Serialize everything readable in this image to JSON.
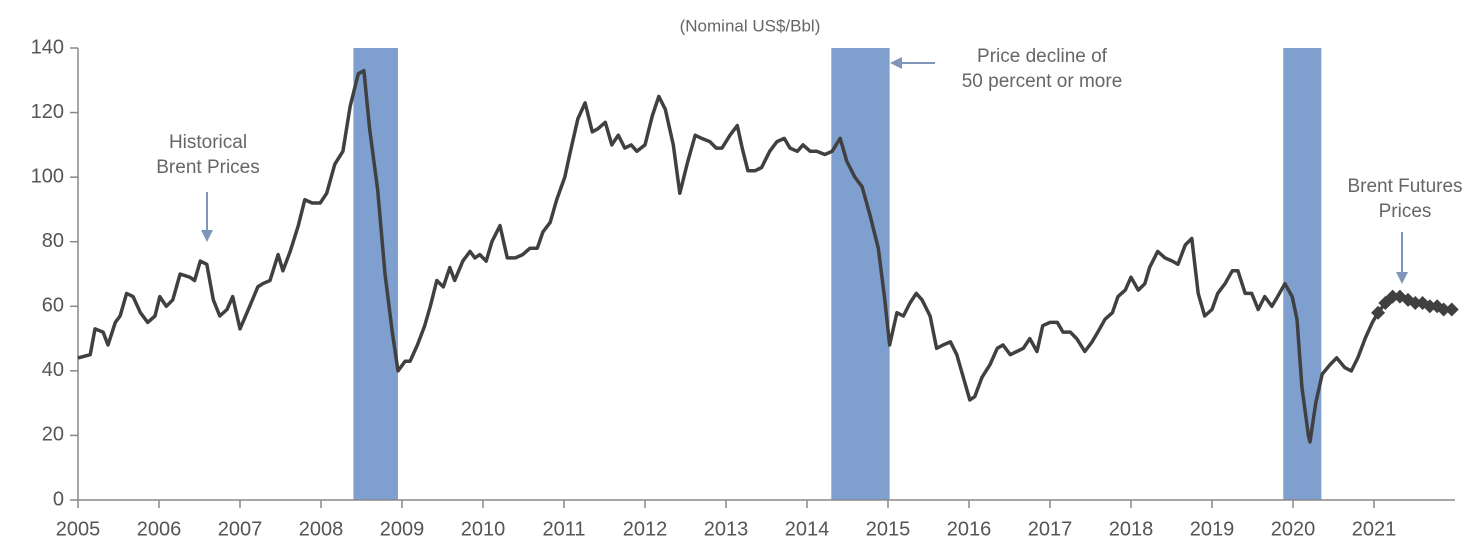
{
  "chart_data": {
    "type": "line",
    "subtitle": "(Nominal US$/Bbl)",
    "xlim": [
      2005,
      2022
    ],
    "xticks": [
      2005,
      2006,
      2007,
      2008,
      2009,
      2010,
      2011,
      2012,
      2013,
      2014,
      2015,
      2016,
      2017,
      2018,
      2019,
      2020,
      2021
    ],
    "ylim": [
      0,
      140
    ],
    "yticks": [
      0,
      20,
      40,
      60,
      80,
      100,
      120,
      140
    ],
    "grid": false,
    "shaded_periods": [
      [
        2008.4,
        2008.95
      ],
      [
        2014.3,
        2015.02
      ],
      [
        2019.88,
        2020.35
      ]
    ],
    "shade_color": "#7f9fcf",
    "annotations": [
      {
        "lines": [
          "Historical",
          "Brent Prices"
        ]
      },
      {
        "lines": [
          "Price decline of",
          "50 percent or more"
        ]
      },
      {
        "lines": [
          "Brent Futures",
          "Prices"
        ]
      }
    ],
    "series": [
      {
        "color": "#404040",
        "marker": "none",
        "x": [
          2005.0,
          2005.15,
          2005.21,
          2005.31,
          2005.37,
          2005.46,
          2005.52,
          2005.6,
          2005.68,
          2005.77,
          2005.86,
          2005.95,
          2006.01,
          2006.09,
          2006.17,
          2006.26,
          2006.38,
          2006.44,
          2006.51,
          2006.59,
          2006.67,
          2006.75,
          2006.84,
          2006.91,
          2007.0,
          2007.12,
          2007.22,
          2007.28,
          2007.37,
          2007.47,
          2007.53,
          2007.62,
          2007.72,
          2007.8,
          2007.89,
          2007.99,
          2008.07,
          2008.17,
          2008.27,
          2008.36,
          2008.46,
          2008.53,
          2008.6,
          2008.7,
          2008.79,
          2008.88,
          2008.95,
          2009.04,
          2009.1,
          2009.19,
          2009.28,
          2009.35,
          2009.43,
          2009.51,
          2009.59,
          2009.65,
          2009.75,
          2009.84,
          2009.9,
          2009.96,
          2010.04,
          2010.11,
          2010.21,
          2010.3,
          2010.4,
          2010.49,
          2010.58,
          2010.67,
          2010.74,
          2010.83,
          2010.91,
          2011.01,
          2011.07,
          2011.17,
          2011.26,
          2011.35,
          2011.42,
          2011.51,
          2011.59,
          2011.67,
          2011.75,
          2011.83,
          2011.9,
          2012.0,
          2012.09,
          2012.17,
          2012.25,
          2012.35,
          2012.43,
          2012.53,
          2012.62,
          2012.7,
          2012.8,
          2012.88,
          2012.95,
          2013.05,
          2013.14,
          2013.2,
          2013.27,
          2013.36,
          2013.44,
          2013.54,
          2013.63,
          2013.72,
          2013.79,
          2013.88,
          2013.95,
          2014.04,
          2014.12,
          2014.22,
          2014.31,
          2014.41,
          2014.49,
          2014.59,
          2014.68,
          2014.78,
          2014.88,
          2014.96,
          2015.02,
          2015.11,
          2015.19,
          2015.27,
          2015.35,
          2015.42,
          2015.52,
          2015.6,
          2015.68,
          2015.77,
          2015.85,
          2015.93,
          2016.01,
          2016.07,
          2016.16,
          2016.26,
          2016.35,
          2016.42,
          2016.51,
          2016.59,
          2016.67,
          2016.75,
          2016.84,
          2016.91,
          2017.0,
          2017.09,
          2017.16,
          2017.25,
          2017.33,
          2017.43,
          2017.52,
          2017.59,
          2017.68,
          2017.77,
          2017.84,
          2017.93,
          2018.0,
          2018.09,
          2018.17,
          2018.23,
          2018.33,
          2018.42,
          2018.51,
          2018.58,
          2018.67,
          2018.75,
          2018.83,
          2018.91,
          2019.0,
          2019.07,
          2019.16,
          2019.25,
          2019.32,
          2019.41,
          2019.49,
          2019.57,
          2019.65,
          2019.74,
          2019.81,
          2019.9,
          2019.99,
          2020.05,
          2020.11,
          2020.19,
          2020.21,
          2020.28,
          2020.36,
          2020.46,
          2020.54,
          2020.64,
          2020.72,
          2020.8,
          2020.89,
          2020.98,
          2021.05
        ],
        "values": [
          44,
          45,
          53,
          52,
          48,
          55,
          57,
          64,
          63,
          58,
          55,
          57,
          63,
          60,
          62,
          70,
          69,
          68,
          74,
          73,
          62,
          57,
          59,
          63,
          53,
          60,
          66,
          67,
          68,
          76,
          71,
          77,
          85,
          93,
          92,
          92,
          95,
          104,
          108,
          122,
          132,
          133,
          115,
          96,
          70,
          52,
          40,
          43,
          43,
          48,
          54,
          60,
          68,
          66,
          72,
          68,
          74,
          77,
          75,
          76,
          74,
          80,
          85,
          75,
          75,
          76,
          78,
          78,
          83,
          86,
          93,
          100,
          107,
          118,
          123,
          114,
          115,
          117,
          110,
          113,
          109,
          110,
          108,
          110,
          119,
          125,
          121,
          110,
          95,
          105,
          113,
          112,
          111,
          109,
          109,
          113,
          116,
          109,
          102,
          102,
          103,
          108,
          111,
          112,
          109,
          108,
          110,
          108,
          108,
          107,
          108,
          112,
          105,
          100,
          97,
          88,
          78,
          62,
          48,
          58,
          57,
          61,
          64,
          62,
          57,
          47,
          48,
          49,
          45,
          38,
          31,
          32,
          38,
          42,
          47,
          48,
          45,
          46,
          47,
          50,
          46,
          54,
          55,
          55,
          52,
          52,
          50,
          46,
          49,
          52,
          56,
          58,
          63,
          65,
          69,
          65,
          67,
          72,
          77,
          75,
          74,
          73,
          79,
          81,
          64,
          57,
          59,
          64,
          67,
          71,
          71,
          64,
          64,
          59,
          63,
          60,
          63,
          67,
          63,
          56,
          35,
          20,
          18,
          30,
          39,
          42,
          44,
          41,
          40,
          44,
          50,
          55,
          58
        ]
      },
      {
        "color": "#404040",
        "marker": "diamond",
        "x": [
          2021.05,
          2021.14,
          2021.23,
          2021.32,
          2021.42,
          2021.51,
          2021.6,
          2021.69,
          2021.78,
          2021.86,
          2021.96
        ],
        "values": [
          58,
          61,
          63,
          63,
          62,
          61,
          61,
          60,
          60,
          59,
          59
        ]
      }
    ]
  }
}
